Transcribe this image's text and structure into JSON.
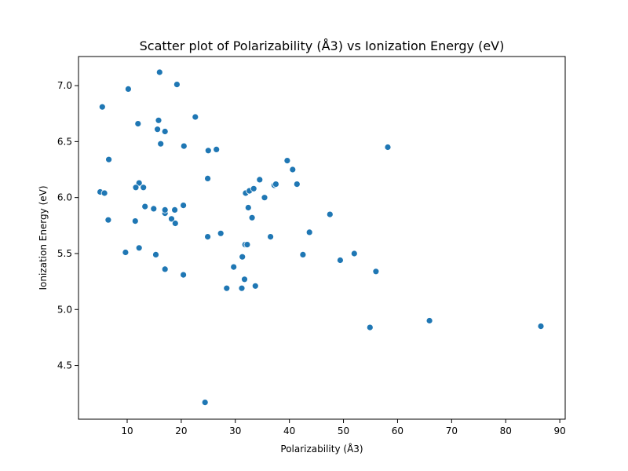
{
  "chart_data": {
    "type": "scatter",
    "title": "Scatter plot of Polarizability (Å3) vs Ionization Energy (eV)",
    "xlabel": "Polarizability (Å3)",
    "ylabel": "Ionization Energy (eV)",
    "xlim": [
      1.0,
      91.0
    ],
    "ylim": [
      4.02,
      7.26
    ],
    "xticks": [
      "10",
      "20",
      "30",
      "40",
      "50",
      "60",
      "70",
      "80",
      "90"
    ],
    "yticks": [
      "4.5",
      "5.0",
      "5.5",
      "6.0",
      "6.5",
      "7.0"
    ],
    "xtick_values": [
      10,
      20,
      30,
      40,
      50,
      60,
      70,
      80,
      90
    ],
    "ytick_values": [
      4.5,
      5.0,
      5.5,
      6.0,
      6.5,
      7.0
    ],
    "grid": false,
    "point_color": "#1f77b4",
    "points": [
      [
        5.4,
        6.81
      ],
      [
        10.2,
        6.97
      ],
      [
        16.0,
        7.12
      ],
      [
        19.2,
        7.01
      ],
      [
        22.6,
        6.72
      ],
      [
        12.0,
        6.66
      ],
      [
        15.8,
        6.69
      ],
      [
        15.6,
        6.61
      ],
      [
        17.0,
        6.59
      ],
      [
        16.2,
        6.48
      ],
      [
        20.5,
        6.46
      ],
      [
        25.0,
        6.42
      ],
      [
        26.5,
        6.43
      ],
      [
        6.6,
        6.34
      ],
      [
        12.2,
        6.13
      ],
      [
        11.6,
        6.09
      ],
      [
        13.0,
        6.09
      ],
      [
        5.0,
        6.05
      ],
      [
        5.8,
        6.04
      ],
      [
        24.9,
        6.17
      ],
      [
        6.5,
        5.8
      ],
      [
        11.5,
        5.79
      ],
      [
        13.3,
        5.92
      ],
      [
        14.9,
        5.9
      ],
      [
        17.0,
        5.86
      ],
      [
        17.0,
        5.89
      ],
      [
        18.8,
        5.89
      ],
      [
        20.4,
        5.93
      ],
      [
        18.2,
        5.81
      ],
      [
        18.9,
        5.77
      ],
      [
        9.7,
        5.51
      ],
      [
        12.2,
        5.55
      ],
      [
        15.3,
        5.49
      ],
      [
        17.0,
        5.36
      ],
      [
        20.4,
        5.31
      ],
      [
        24.9,
        5.65
      ],
      [
        27.3,
        5.68
      ],
      [
        31.8,
        5.58
      ],
      [
        32.2,
        5.58
      ],
      [
        31.3,
        5.47
      ],
      [
        29.7,
        5.38
      ],
      [
        28.4,
        5.19
      ],
      [
        31.2,
        5.19
      ],
      [
        31.7,
        5.27
      ],
      [
        33.7,
        5.21
      ],
      [
        24.4,
        4.17
      ],
      [
        31.9,
        6.04
      ],
      [
        32.6,
        6.06
      ],
      [
        33.4,
        6.08
      ],
      [
        34.5,
        6.16
      ],
      [
        35.4,
        6.0
      ],
      [
        37.2,
        6.11
      ],
      [
        37.5,
        6.12
      ],
      [
        32.4,
        5.91
      ],
      [
        33.1,
        5.82
      ],
      [
        36.5,
        5.65
      ],
      [
        39.6,
        6.33
      ],
      [
        40.6,
        6.25
      ],
      [
        41.4,
        6.12
      ],
      [
        42.5,
        5.49
      ],
      [
        43.7,
        5.69
      ],
      [
        47.5,
        5.85
      ],
      [
        49.4,
        5.44
      ],
      [
        52.0,
        5.5
      ],
      [
        56.0,
        5.34
      ],
      [
        58.2,
        6.45
      ],
      [
        54.9,
        4.84
      ],
      [
        65.9,
        4.9
      ],
      [
        86.5,
        4.85
      ]
    ]
  }
}
